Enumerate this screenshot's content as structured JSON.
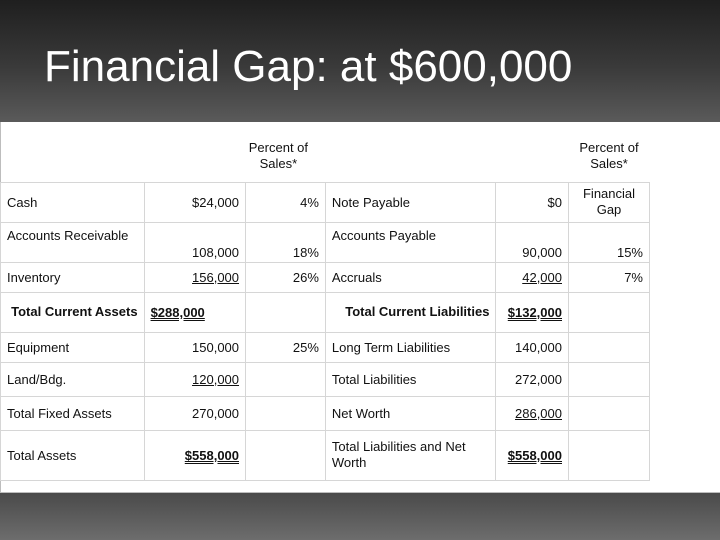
{
  "slide": {
    "title": "Financial Gap: at $600,000"
  },
  "table": {
    "header": {
      "left_pct": "Percent of Sales*",
      "right_pct": "Percent of Sales*"
    },
    "rows": [
      {
        "asset": "Cash",
        "asset_value": "$24,000",
        "asset_pct": "4%",
        "liab": "Note Payable",
        "liab_value": "$0",
        "liab_pct": "Financial Gap"
      },
      {
        "asset": "Accounts Receivable",
        "asset_value": "108,000",
        "asset_pct": "18%",
        "liab": "Accounts Payable",
        "liab_value": "90,000",
        "liab_pct": "15%"
      },
      {
        "asset": "Inventory",
        "asset_value": "156,000",
        "asset_pct": "26%",
        "liab": "Accruals",
        "liab_value": "42,000",
        "liab_pct": "7%"
      },
      {
        "asset": "Total Current Assets",
        "asset_value": "$288,000",
        "asset_pct": "",
        "liab": "Total Current Liabilities",
        "liab_value": "$132,000",
        "liab_pct": ""
      },
      {
        "asset": "Equipment",
        "asset_value": "150,000",
        "asset_pct": "25%",
        "liab": "Long Term Liabilities",
        "liab_value": "140,000",
        "liab_pct": ""
      },
      {
        "asset": "Land/Bdg.",
        "asset_value": "120,000",
        "asset_pct": "",
        "liab": "Total Liabilities",
        "liab_value": "272,000",
        "liab_pct": ""
      },
      {
        "asset": "Total Fixed Assets",
        "asset_value": "270,000",
        "asset_pct": "",
        "liab": "Net Worth",
        "liab_value": "286,000",
        "liab_pct": ""
      },
      {
        "asset": "Total Assets",
        "asset_value": "$558,000",
        "asset_pct": "",
        "liab": "Total Liabilities and Net Worth",
        "liab_value": "$558,000",
        "liab_pct": ""
      }
    ]
  }
}
